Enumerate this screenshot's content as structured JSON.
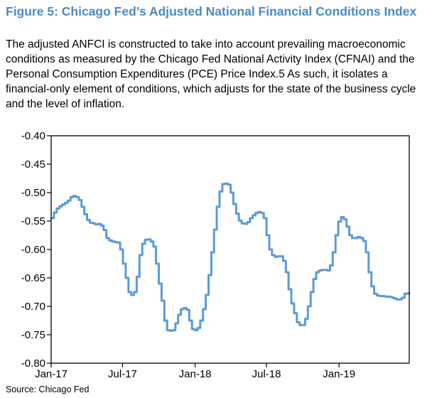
{
  "figure": {
    "title": "Figure 5: Chicago Fed’s Adjusted National Financial Conditions Index",
    "subtitle": "The adjusted ANFCI is constructed to take into account prevailing macroeconomic conditions as measured by the Chicago Fed National Activity Index (CFNAI) and the Personal Consumption Expenditures (PCE) Price Index.5 As such, it isolates a financial-only element of conditions, which adjusts for the state of the business cycle and the level of inflation.",
    "source": "Source: Chicago Fed"
  },
  "colors": {
    "title": "#4a8bc4",
    "line": "#5b9bd5",
    "axis": "#000000"
  },
  "chart_data": {
    "type": "line",
    "title": "",
    "xlabel": "",
    "ylabel": "",
    "ylim": [
      -0.8,
      -0.4
    ],
    "yticks": [
      -0.4,
      -0.45,
      -0.5,
      -0.55,
      -0.6,
      -0.65,
      -0.7,
      -0.75,
      -0.8
    ],
    "ytick_labels": [
      "-0.40",
      "-0.45",
      "-0.50",
      "-0.55",
      "-0.60",
      "-0.65",
      "-0.70",
      "-0.75",
      "-0.80"
    ],
    "xlim": [
      "2017-01-01",
      "2019-06-28"
    ],
    "xticks": [
      "2017-01-01",
      "2017-07-01",
      "2018-01-01",
      "2018-07-01",
      "2019-01-01"
    ],
    "xtick_labels": [
      "Jan-17",
      "Jul-17",
      "Jan-18",
      "Jul-18",
      "Jan-19"
    ],
    "grid": false,
    "legend": "none",
    "series": [
      {
        "name": "",
        "x": [
          "2017-01-01",
          "2017-01-08",
          "2017-01-15",
          "2017-01-22",
          "2017-01-29",
          "2017-02-05",
          "2017-02-12",
          "2017-02-19",
          "2017-02-26",
          "2017-03-05",
          "2017-03-12",
          "2017-03-19",
          "2017-03-26",
          "2017-04-02",
          "2017-04-09",
          "2017-04-16",
          "2017-04-23",
          "2017-04-30",
          "2017-05-07",
          "2017-05-14",
          "2017-05-21",
          "2017-05-28",
          "2017-06-04",
          "2017-06-11",
          "2017-06-18",
          "2017-06-25",
          "2017-07-02",
          "2017-07-09",
          "2017-07-16",
          "2017-07-23",
          "2017-07-30",
          "2017-08-06",
          "2017-08-13",
          "2017-08-20",
          "2017-08-27",
          "2017-09-03",
          "2017-09-10",
          "2017-09-17",
          "2017-09-24",
          "2017-10-01",
          "2017-10-08",
          "2017-10-15",
          "2017-10-22",
          "2017-10-29",
          "2017-11-05",
          "2017-11-12",
          "2017-11-19",
          "2017-11-26",
          "2017-12-03",
          "2017-12-10",
          "2017-12-17",
          "2017-12-24",
          "2017-12-31",
          "2018-01-07",
          "2018-01-14",
          "2018-01-21",
          "2018-01-28",
          "2018-02-04",
          "2018-02-11",
          "2018-02-18",
          "2018-02-25",
          "2018-03-04",
          "2018-03-11",
          "2018-03-18",
          "2018-03-25",
          "2018-04-01",
          "2018-04-08",
          "2018-04-15",
          "2018-04-22",
          "2018-04-29",
          "2018-05-06",
          "2018-05-13",
          "2018-05-20",
          "2018-05-27",
          "2018-06-03",
          "2018-06-10",
          "2018-06-17",
          "2018-06-24",
          "2018-07-01",
          "2018-07-08",
          "2018-07-15",
          "2018-07-22",
          "2018-07-29",
          "2018-08-05",
          "2018-08-12",
          "2018-08-19",
          "2018-08-26",
          "2018-09-02",
          "2018-09-09",
          "2018-09-16",
          "2018-09-23",
          "2018-09-30",
          "2018-10-07",
          "2018-10-14",
          "2018-10-21",
          "2018-10-28",
          "2018-11-04",
          "2018-11-11",
          "2018-11-18",
          "2018-11-25",
          "2018-12-02",
          "2018-12-09",
          "2018-12-16",
          "2018-12-23",
          "2018-12-30",
          "2019-01-06",
          "2019-01-13",
          "2019-01-20",
          "2019-01-27",
          "2019-02-03",
          "2019-02-10",
          "2019-02-17",
          "2019-02-24",
          "2019-03-03",
          "2019-03-10",
          "2019-03-17",
          "2019-03-24",
          "2019-03-31",
          "2019-04-07",
          "2019-04-14",
          "2019-04-21",
          "2019-04-28",
          "2019-05-05",
          "2019-05-12",
          "2019-05-19",
          "2019-05-26",
          "2019-06-02",
          "2019-06-09",
          "2019-06-16",
          "2019-06-23",
          "2019-06-28"
        ],
        "values": [
          -0.545,
          -0.535,
          -0.528,
          -0.524,
          -0.521,
          -0.518,
          -0.514,
          -0.508,
          -0.506,
          -0.508,
          -0.513,
          -0.525,
          -0.538,
          -0.548,
          -0.553,
          -0.554,
          -0.556,
          -0.555,
          -0.558,
          -0.566,
          -0.58,
          -0.584,
          -0.586,
          -0.587,
          -0.588,
          -0.6,
          -0.625,
          -0.65,
          -0.675,
          -0.68,
          -0.675,
          -0.648,
          -0.61,
          -0.59,
          -0.583,
          -0.582,
          -0.586,
          -0.595,
          -0.625,
          -0.66,
          -0.69,
          -0.725,
          -0.742,
          -0.743,
          -0.742,
          -0.73,
          -0.715,
          -0.705,
          -0.703,
          -0.706,
          -0.725,
          -0.74,
          -0.742,
          -0.738,
          -0.725,
          -0.705,
          -0.68,
          -0.645,
          -0.605,
          -0.565,
          -0.525,
          -0.498,
          -0.485,
          -0.484,
          -0.486,
          -0.5,
          -0.52,
          -0.537,
          -0.549,
          -0.554,
          -0.555,
          -0.552,
          -0.545,
          -0.54,
          -0.536,
          -0.534,
          -0.536,
          -0.545,
          -0.575,
          -0.6,
          -0.61,
          -0.613,
          -0.612,
          -0.612,
          -0.62,
          -0.64,
          -0.67,
          -0.695,
          -0.712,
          -0.728,
          -0.733,
          -0.733,
          -0.722,
          -0.7,
          -0.675,
          -0.652,
          -0.64,
          -0.637,
          -0.636,
          -0.636,
          -0.637,
          -0.628,
          -0.605,
          -0.575,
          -0.551,
          -0.543,
          -0.547,
          -0.56,
          -0.575,
          -0.58,
          -0.58,
          -0.578,
          -0.58,
          -0.585,
          -0.605,
          -0.64,
          -0.665,
          -0.678,
          -0.681,
          -0.682,
          -0.682,
          -0.683,
          -0.683,
          -0.684,
          -0.686,
          -0.688,
          -0.688,
          -0.685,
          -0.678,
          -0.677,
          -0.677
        ]
      }
    ]
  }
}
